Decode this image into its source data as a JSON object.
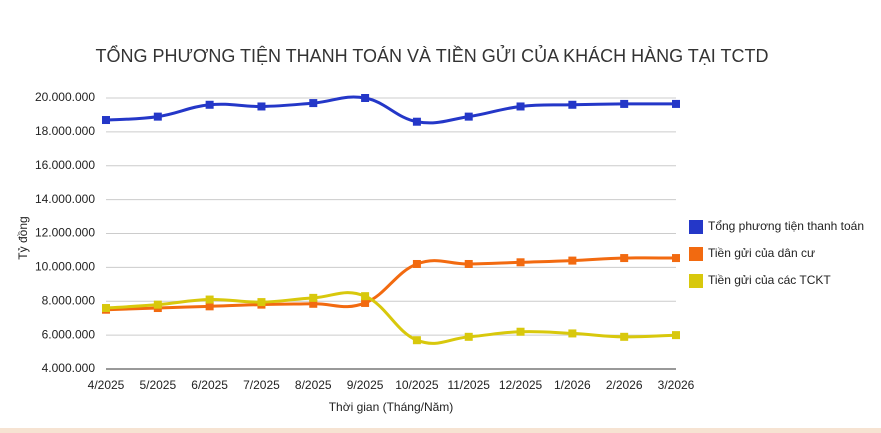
{
  "chart_data": {
    "type": "line",
    "title": "TỔNG PHƯƠNG TIỆN THANH TOÁN VÀ TIỀN GỬI CỦA KHÁCH HÀNG TẠI TCTD",
    "x_label": "Thời gian (Tháng/Năm)",
    "y_label": "Tỷ đồng",
    "categories": [
      "4/2025",
      "5/2025",
      "6/2025",
      "7/2025",
      "8/2025",
      "9/2025",
      "10/2025",
      "11/2025",
      "12/2025",
      "1/2026",
      "2/2026",
      "3/2026"
    ],
    "series": [
      {
        "name": "Tổng phương tiện thanh toán",
        "color": "#2437c8",
        "values": [
          18700000,
          18900000,
          19600000,
          19500000,
          19700000,
          20000000,
          18600000,
          18900000,
          19500000,
          19600000,
          19650000,
          19650000
        ]
      },
      {
        "name": "Tiền gửi của dân cư",
        "color": "#f26a10",
        "values": [
          7500000,
          7600000,
          7700000,
          7800000,
          7850000,
          7900000,
          10200000,
          10200000,
          10300000,
          10400000,
          10550000,
          10550000
        ]
      },
      {
        "name": "Tiền gửi của các TCKT",
        "color": "#d8c80c",
        "values": [
          7600000,
          7800000,
          8100000,
          7950000,
          8200000,
          8300000,
          5700000,
          5900000,
          6200000,
          6100000,
          5900000,
          6000000
        ]
      }
    ],
    "ylim": [
      4000000,
      20000000
    ],
    "yticks": [
      {
        "value": 4000000,
        "label": "4.000.000"
      },
      {
        "value": 6000000,
        "label": "6.000.000"
      },
      {
        "value": 8000000,
        "label": "8.000.000"
      },
      {
        "value": 10000000,
        "label": "10.000.000"
      },
      {
        "value": 12000000,
        "label": "12.000.000"
      },
      {
        "value": 14000000,
        "label": "14.000.000"
      },
      {
        "value": 16000000,
        "label": "16.000.000"
      },
      {
        "value": 18000000,
        "label": "18.000.000"
      },
      {
        "value": 20000000,
        "label": "20.000.000"
      }
    ],
    "grid": true,
    "legend": "right"
  }
}
